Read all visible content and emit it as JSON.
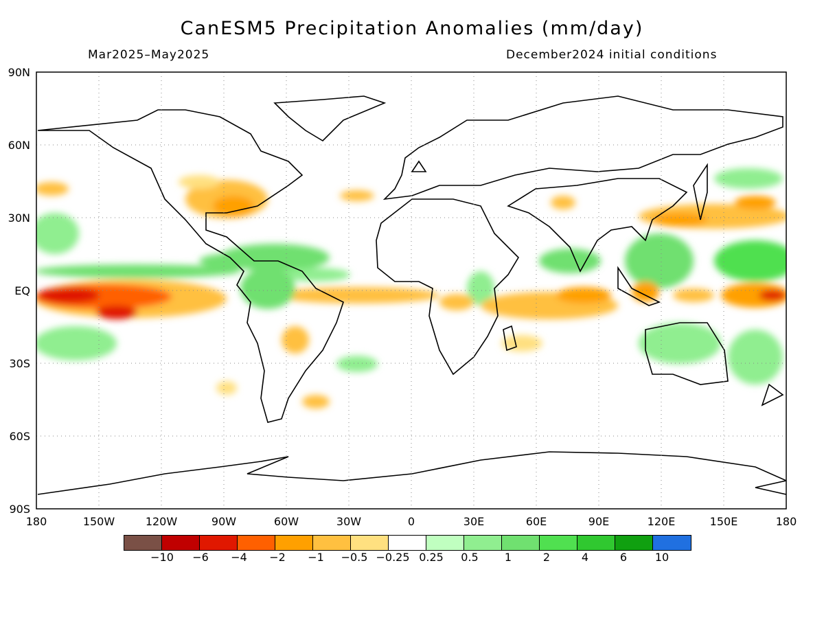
{
  "title": "CanESM5 Precipitation Anomalies (mm/day)",
  "period": "Mar2025–May2025",
  "init": "December2024 initial conditions",
  "lat_labels": [
    "90N",
    "60N",
    "30N",
    "EQ",
    "30S",
    "60S",
    "90S"
  ],
  "lon_labels": [
    "180",
    "150W",
    "120W",
    "90W",
    "60W",
    "30W",
    "0",
    "30E",
    "60E",
    "90E",
    "120E",
    "150E",
    "180"
  ],
  "legend": {
    "colors": [
      "#7a5046",
      "#c00000",
      "#e01800",
      "#ff6000",
      "#ffa000",
      "#ffc040",
      "#ffe080",
      "#ffffff",
      "#c0ffc0",
      "#90ee90",
      "#70e070",
      "#50e050",
      "#30c830",
      "#10a010",
      "#2070e0"
    ],
    "labels": [
      "−10",
      "−6",
      "−4",
      "−2",
      "−1",
      "−0.5",
      "−0.25",
      "0.25",
      "0.5",
      "1",
      "2",
      "4",
      "6",
      "10"
    ]
  }
}
